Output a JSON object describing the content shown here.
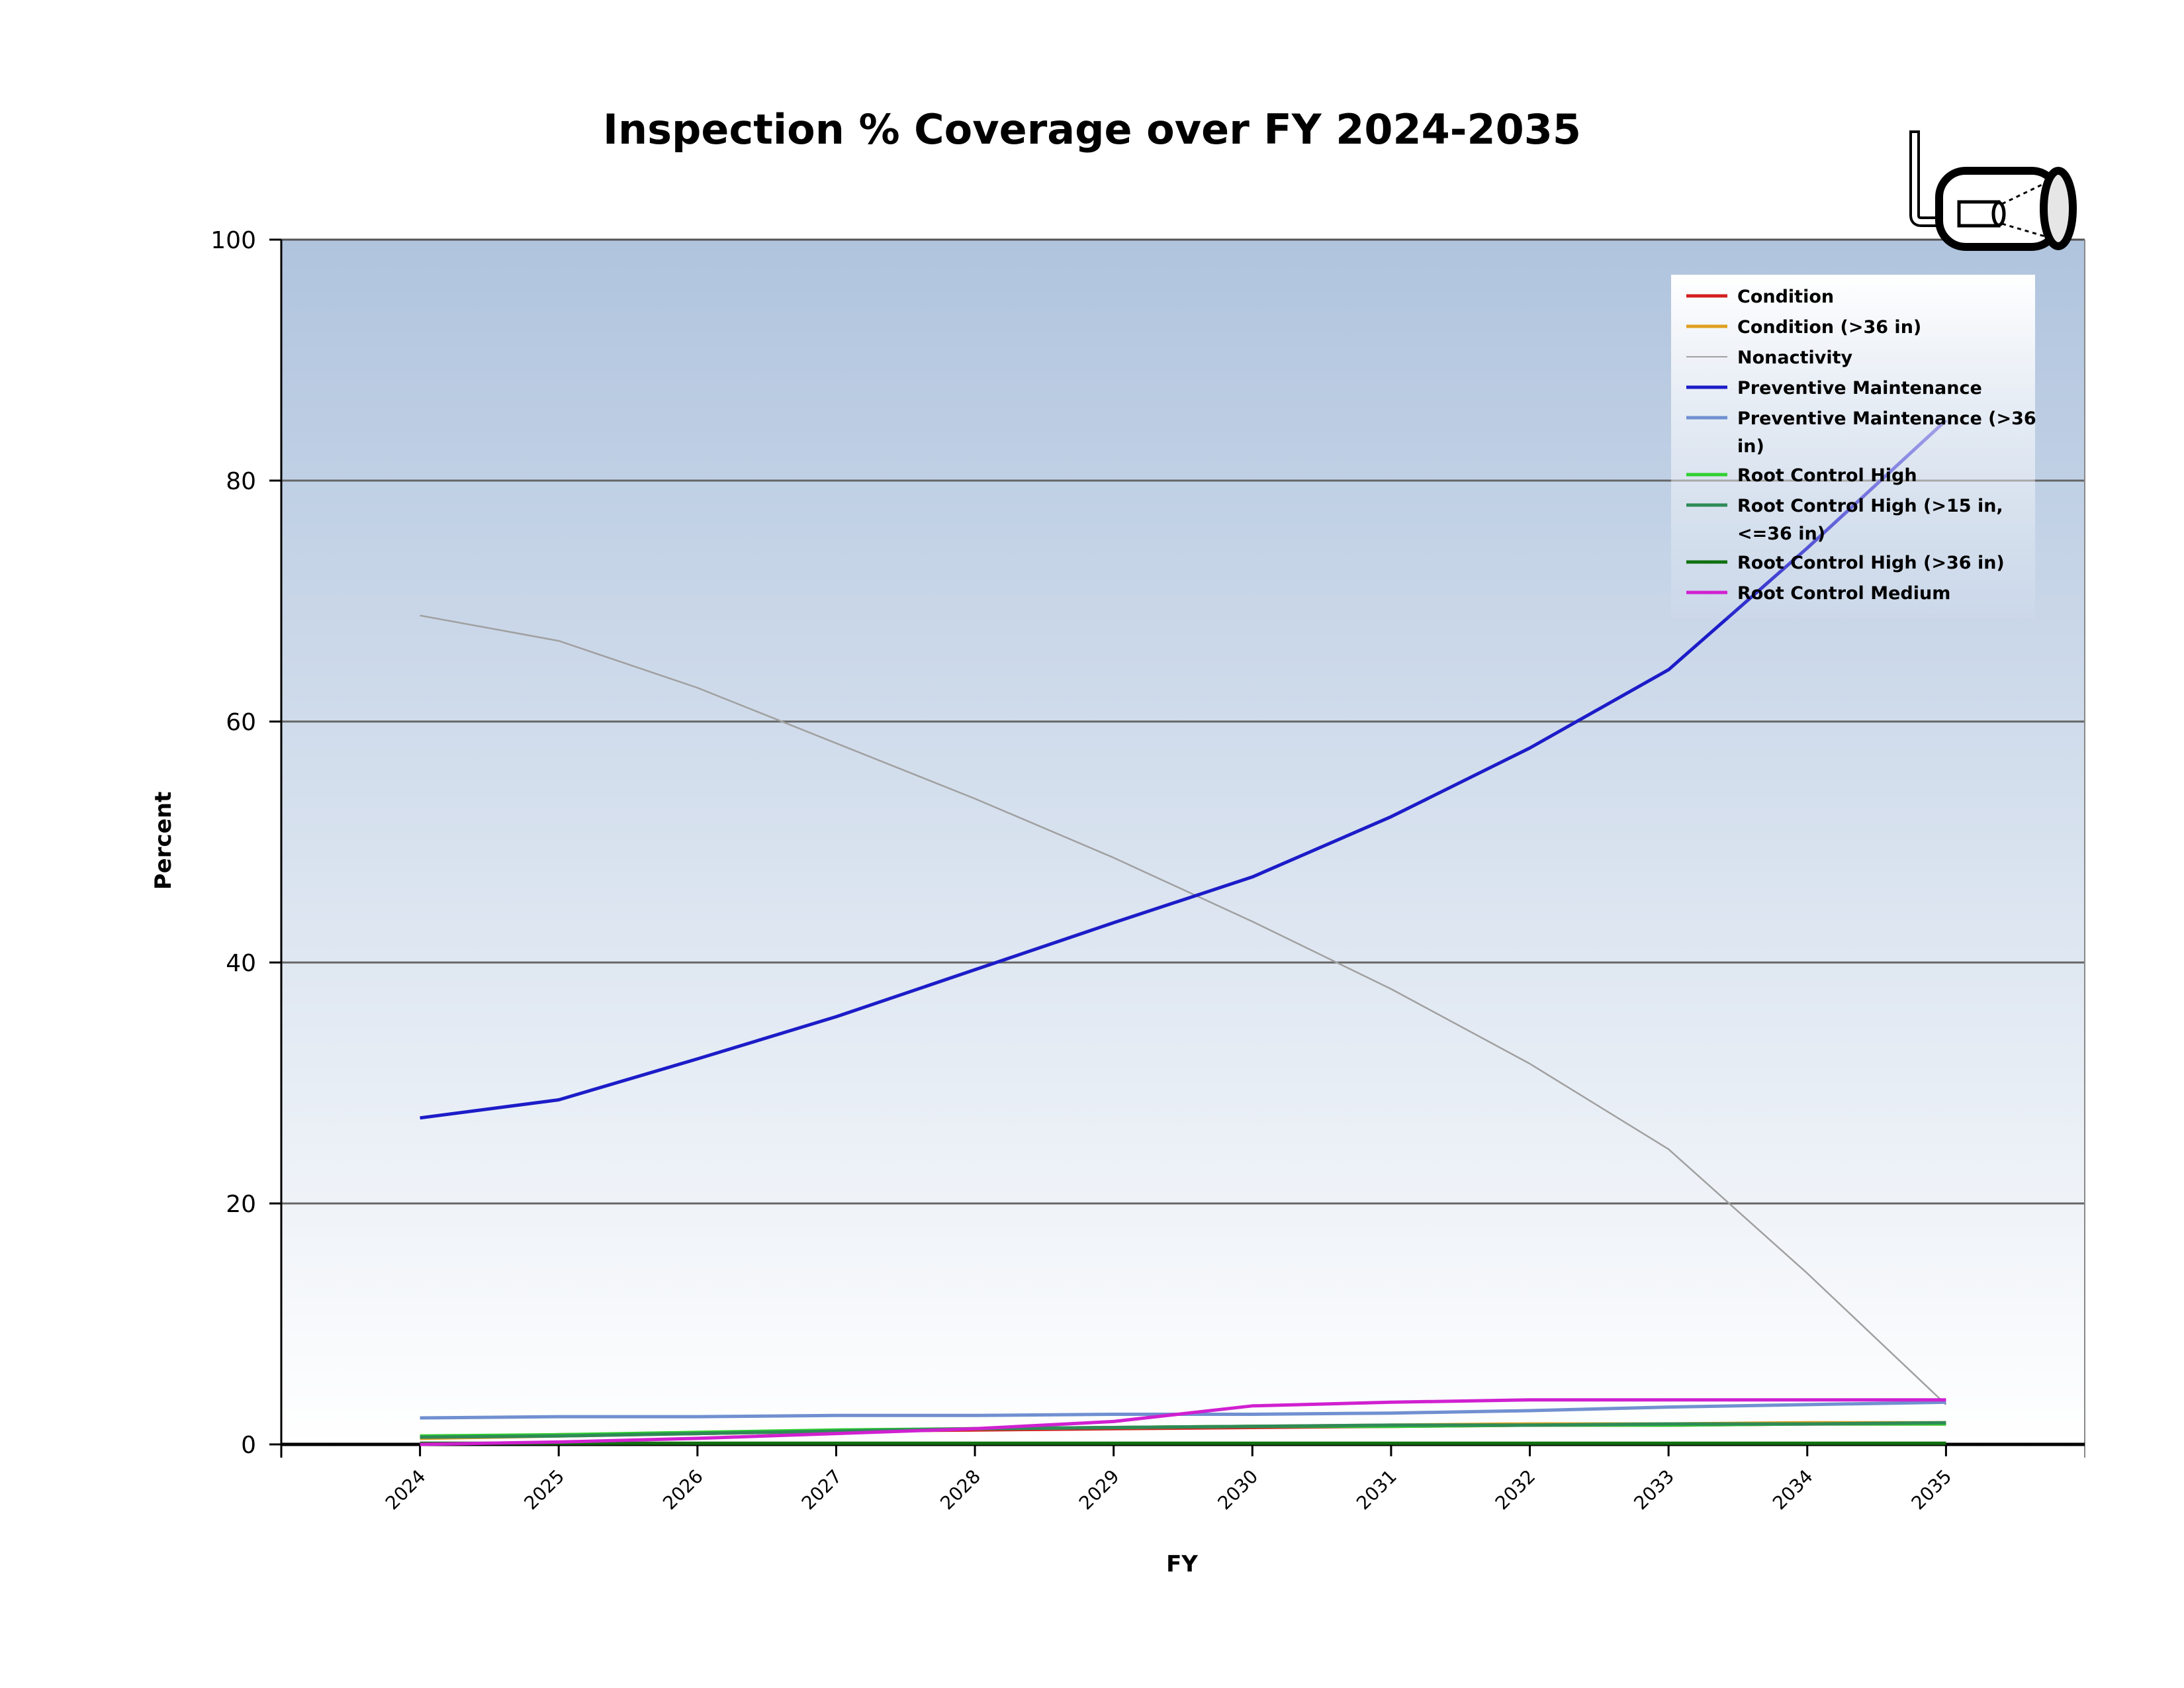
{
  "chart_data": {
    "type": "line",
    "title": "Inspection % Coverage over FY 2024-2035",
    "xlabel": "FY",
    "ylabel": "Percent",
    "x": [
      2024,
      2025,
      2026,
      2027,
      2028,
      2029,
      2030,
      2031,
      2032,
      2033,
      2034,
      2035
    ],
    "xlim": [
      2023,
      2036
    ],
    "ylim": [
      0,
      100
    ],
    "yticks": [
      0,
      20,
      40,
      60,
      80,
      100
    ],
    "grid": true,
    "legend_position": "top-right",
    "series": [
      {
        "name": "Condition",
        "color": "#d42020",
        "values": [
          0.6,
          0.8,
          0.9,
          1.1,
          1.2,
          1.3,
          1.4,
          1.5,
          1.6,
          1.6,
          1.7,
          1.7
        ]
      },
      {
        "name": "Condition (>36 in)",
        "color": "#e0a020",
        "values": [
          0.5,
          0.7,
          0.9,
          1.1,
          1.3,
          1.4,
          1.5,
          1.6,
          1.7,
          1.7,
          1.8,
          1.8
        ]
      },
      {
        "name": "Nonactivity",
        "color": "#a0a0a0",
        "values": [
          68.8,
          66.7,
          62.8,
          58.2,
          53.6,
          48.7,
          43.4,
          37.8,
          31.6,
          24.5,
          14.2,
          3.3
        ]
      },
      {
        "name": "Preventive Maintenance",
        "color": "#1c1cc8",
        "values": [
          27.1,
          28.6,
          32.0,
          35.5,
          39.4,
          43.3,
          47.1,
          52.1,
          57.8,
          64.3,
          74.4,
          85.0
        ]
      },
      {
        "name": "Preventive Maintenance (>36 in)",
        "color": "#7090d0",
        "values": [
          2.2,
          2.3,
          2.3,
          2.4,
          2.4,
          2.5,
          2.5,
          2.6,
          2.8,
          3.1,
          3.3,
          3.5
        ]
      },
      {
        "name": "Root Control High",
        "color": "#30d030",
        "values": [
          0.7,
          0.8,
          1.0,
          1.2,
          1.3,
          1.4,
          1.5,
          1.5,
          1.6,
          1.6,
          1.7,
          1.7
        ]
      },
      {
        "name": "Root Control High (>15 in, <=36 in)",
        "color": "#2e8b57",
        "values": [
          0.6,
          0.7,
          0.9,
          1.1,
          1.3,
          1.4,
          1.5,
          1.6,
          1.6,
          1.7,
          1.7,
          1.8
        ]
      },
      {
        "name": "Root Control High (>36 in)",
        "color": "#107010",
        "values": [
          0.1,
          0.1,
          0.1,
          0.1,
          0.1,
          0.1,
          0.1,
          0.1,
          0.1,
          0.1,
          0.1,
          0.1
        ]
      },
      {
        "name": "Root Control Medium",
        "color": "#d020d0",
        "values": [
          0.0,
          0.2,
          0.5,
          0.9,
          1.3,
          1.9,
          3.2,
          3.5,
          3.7,
          3.7,
          3.7,
          3.7
        ]
      }
    ]
  },
  "legend_labels": [
    [
      "Condition"
    ],
    [
      "Condition (>36 in)"
    ],
    [
      "Nonactivity"
    ],
    [
      "Preventive Maintenance"
    ],
    [
      "Preventive Maintenance (>36",
      "in)"
    ],
    [
      "Root Control High"
    ],
    [
      "Root Control High (>15 in,",
      "<=36 in)"
    ],
    [
      "Root Control High (>36 in)"
    ],
    [
      "Root Control Medium"
    ]
  ],
  "logo": {
    "icon": "pipe-inspection-camera-icon"
  }
}
